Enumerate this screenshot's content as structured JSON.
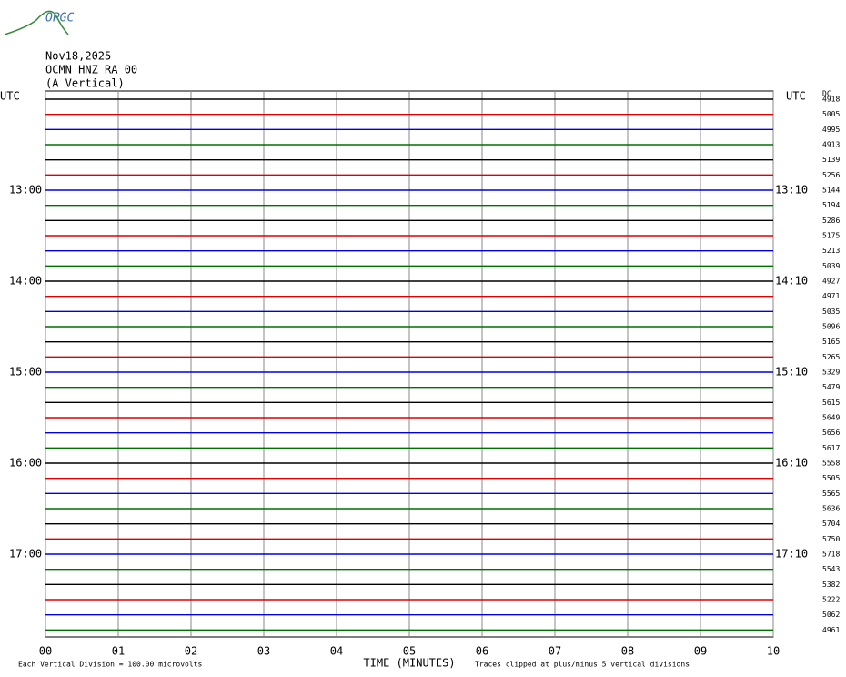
{
  "chart_data": {
    "type": "helicorder",
    "logo": "OPGC",
    "date": "Nov18,2025",
    "station": "OCMN HNZ RA 00",
    "component": "(A Vertical)",
    "left_header": "UTC",
    "right_header": "UTC",
    "dc_header": "DC",
    "left_hour_labels": [
      "13:00",
      "14:00",
      "15:00",
      "16:00",
      "17:00"
    ],
    "right_hour_labels": [
      "13:10",
      "14:10",
      "15:10",
      "16:10",
      "17:10"
    ],
    "colors": [
      "#000000",
      "#e00000",
      "#0000e0",
      "#007000"
    ],
    "dc_values": [
      4918,
      5005,
      4995,
      4913,
      5139,
      5256,
      5144,
      5194,
      5286,
      5175,
      5213,
      5039,
      4927,
      4971,
      5035,
      5096,
      5165,
      5265,
      5329,
      5479,
      5615,
      5649,
      5656,
      5617,
      5558,
      5505,
      5565,
      5636,
      5704,
      5750,
      5718,
      5543,
      5382,
      5222,
      5062,
      4961
    ],
    "xlim": [
      0,
      10
    ],
    "xticks": [
      {
        "value": 0,
        "label": "00"
      },
      {
        "value": 1,
        "label": "01"
      },
      {
        "value": 2,
        "label": "02"
      },
      {
        "value": 3,
        "label": "03"
      },
      {
        "value": 4,
        "label": "04"
      },
      {
        "value": 5,
        "label": "05"
      },
      {
        "value": 6,
        "label": "06"
      },
      {
        "value": 7,
        "label": "07"
      },
      {
        "value": 8,
        "label": "08"
      },
      {
        "value": 9,
        "label": "09"
      },
      {
        "value": 10,
        "label": "10"
      }
    ],
    "x_label": "TIME (MINUTES)",
    "scale_note": "Each Vertical Division =  100.00 microvolts",
    "clip_note": "Traces clipped at plus/minus 5 vertical divisions"
  }
}
